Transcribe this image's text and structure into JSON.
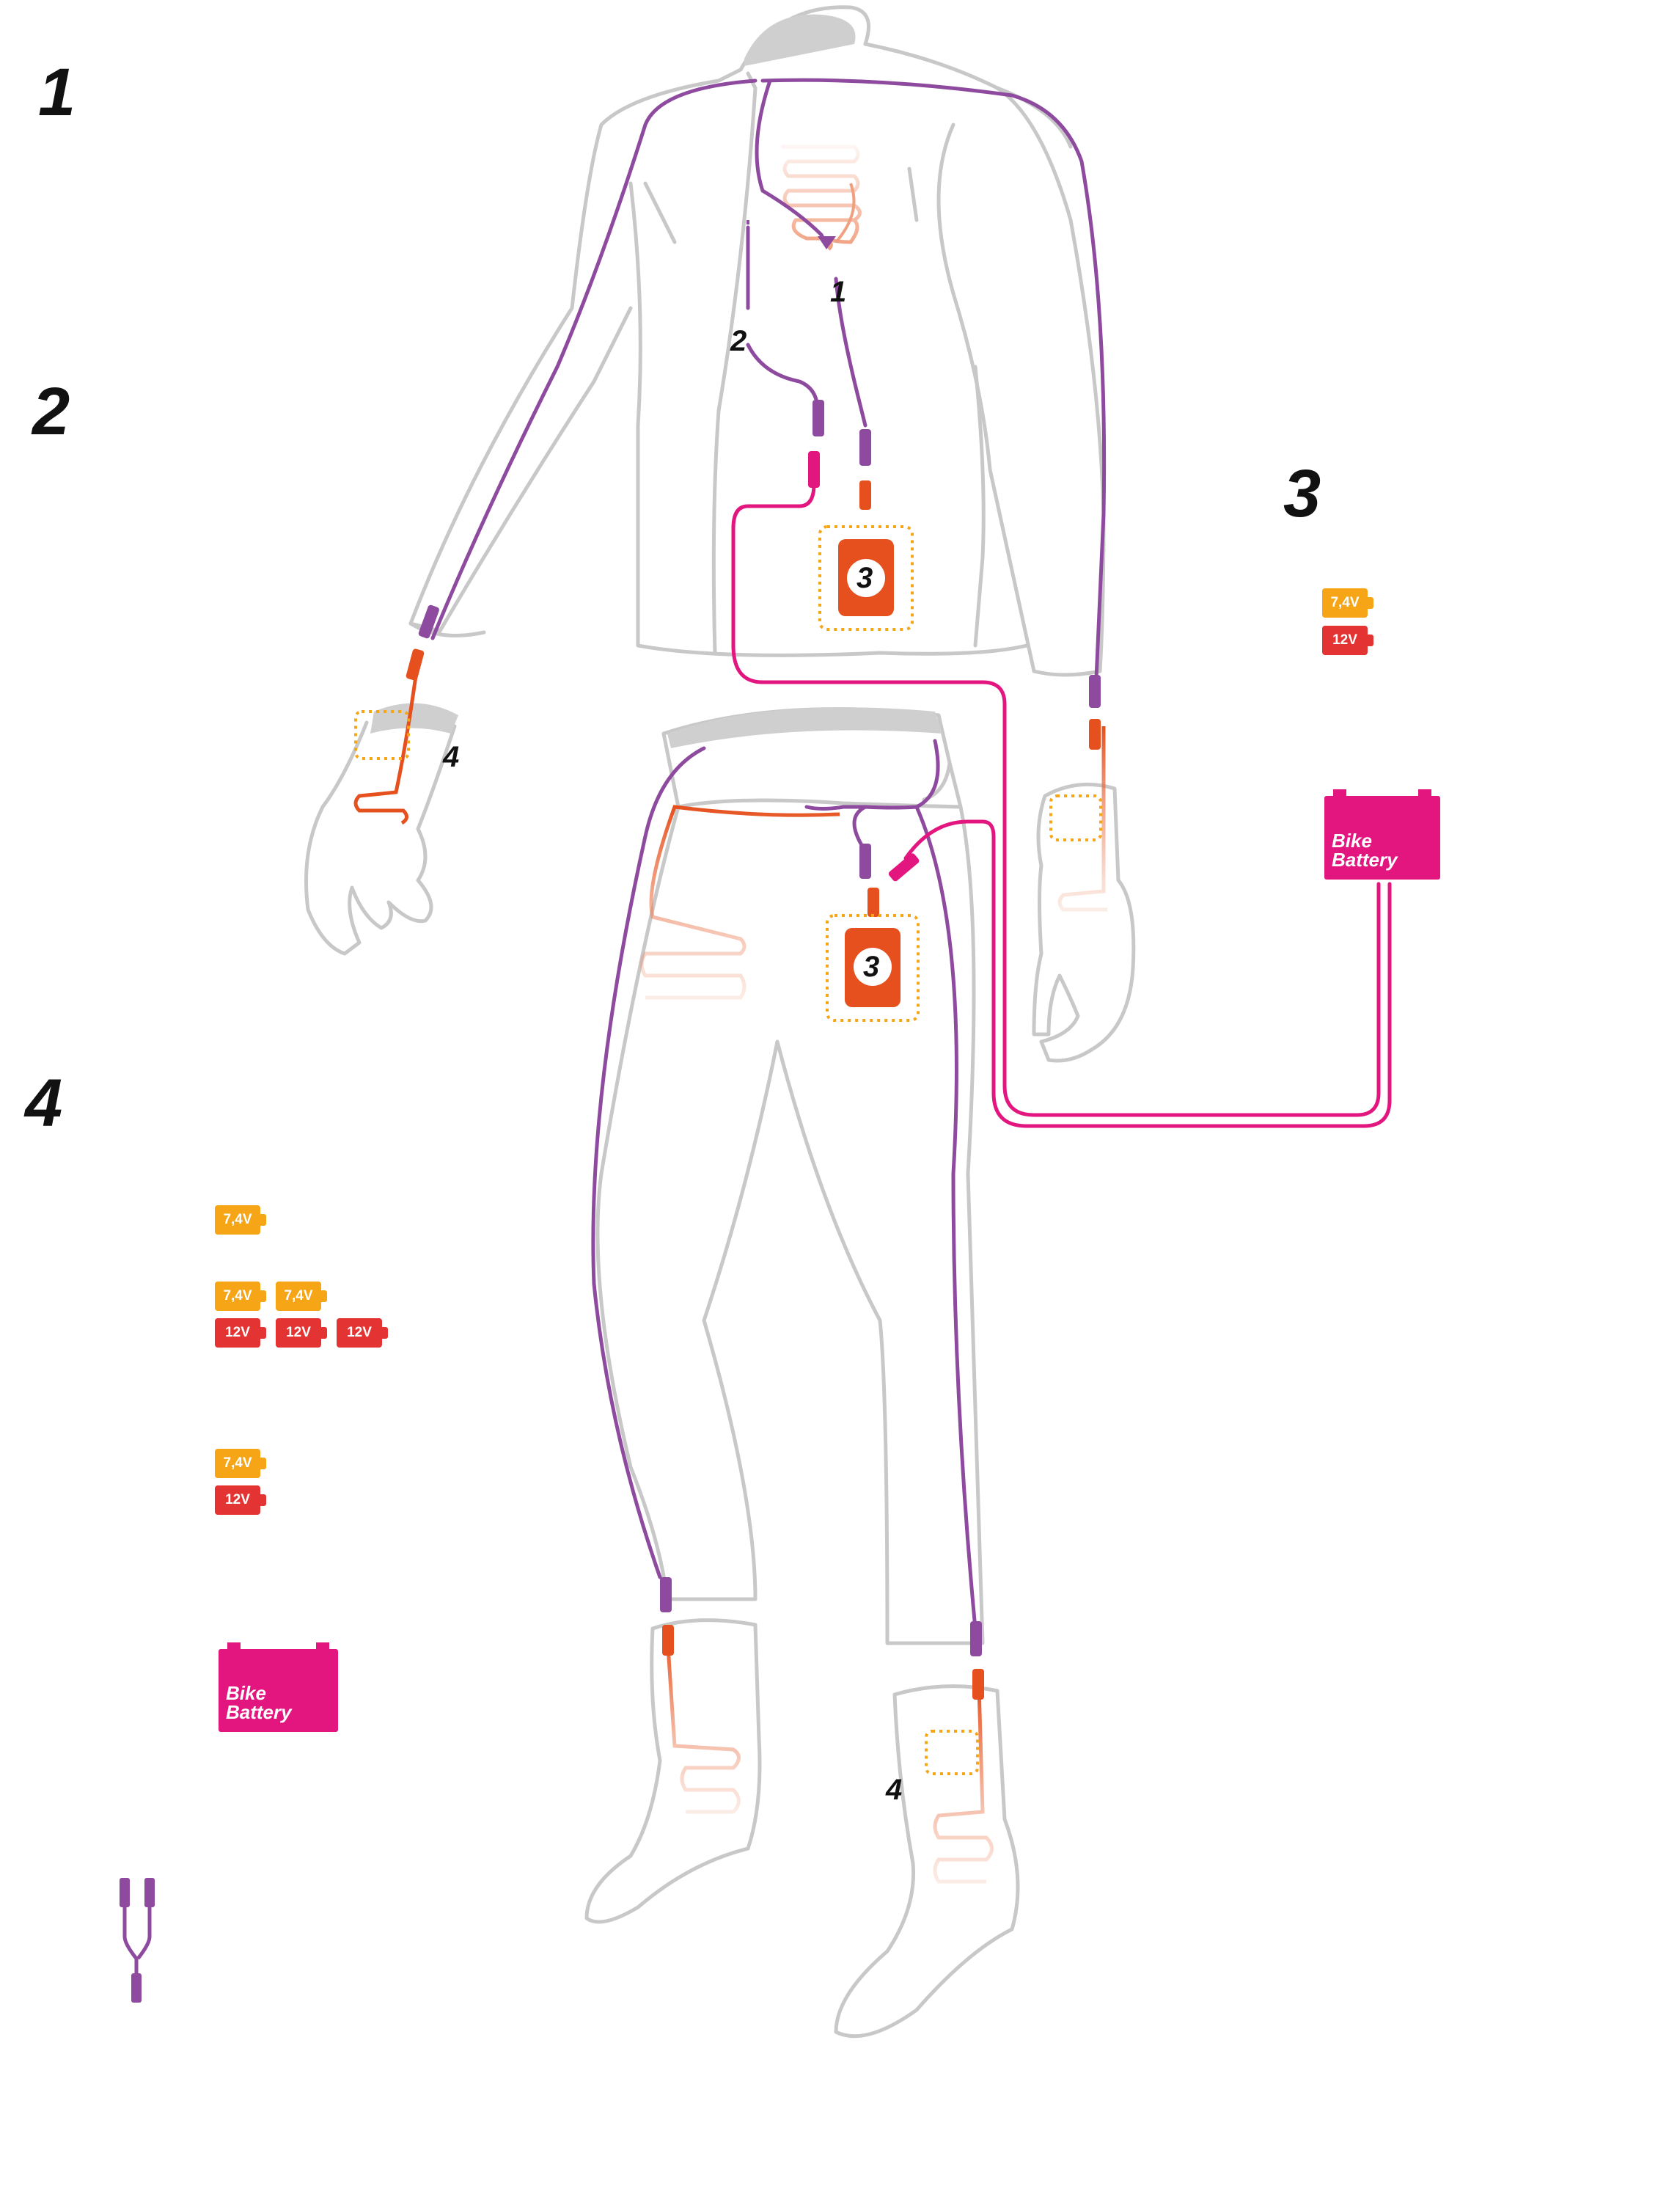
{
  "legend_numbers": {
    "n1": "1",
    "n2": "2",
    "n3": "3",
    "n4": "4"
  },
  "figure_labels": {
    "cable_1": "1",
    "cable_2": "2",
    "controller_jacket": "3",
    "controller_pants": "3",
    "glove": "4",
    "sock": "4"
  },
  "batteries": {
    "v74": "7,4V",
    "v12": "12V",
    "bike_line1": "Bike",
    "bike_line2": "Battery"
  },
  "colors": {
    "outline": "#c8c8c8",
    "purple_cable": "#8e4a9e",
    "orange_heat": "#e6501e",
    "pink_cable": "#e3167f",
    "battery_7v4": "#f5a515",
    "battery_12v": "#e33332",
    "bike_battery": "#e3167f"
  }
}
